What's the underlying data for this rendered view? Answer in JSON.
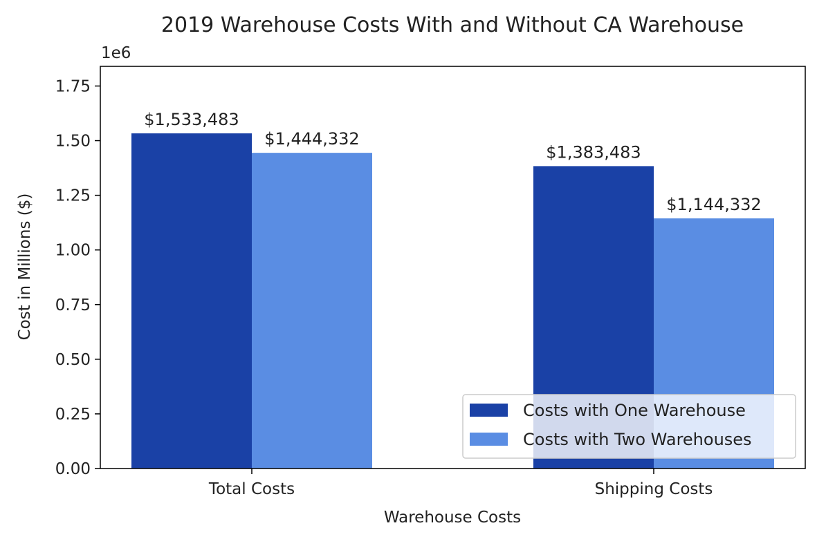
{
  "chart_data": {
    "type": "bar",
    "title": "2019 Warehouse Costs With and Without CA Warehouse",
    "xlabel": "Warehouse Costs",
    "ylabel": "Cost in Millions ($)",
    "y_offset_label": "1e6",
    "categories": [
      "Total Costs",
      "Shipping Costs"
    ],
    "ylim": [
      0,
      1840000
    ],
    "yticks": [
      0,
      250000,
      500000,
      750000,
      1000000,
      1250000,
      1500000,
      1750000
    ],
    "ytick_labels": [
      "0.00",
      "0.25",
      "0.50",
      "0.75",
      "1.00",
      "1.25",
      "1.50",
      "1.75"
    ],
    "grid": false,
    "legend_position": "bottom-right",
    "series": [
      {
        "name": "Costs with One Warehouse",
        "color": "#1a41a6",
        "values": [
          1533483,
          1383483
        ],
        "labels": [
          "$1,533,483",
          "$1,383,483"
        ]
      },
      {
        "name": "Costs with Two Warehouses",
        "color": "#5a8de3",
        "values": [
          1444332,
          1144332
        ],
        "labels": [
          "$1,444,332",
          "$1,144,332"
        ]
      }
    ]
  }
}
